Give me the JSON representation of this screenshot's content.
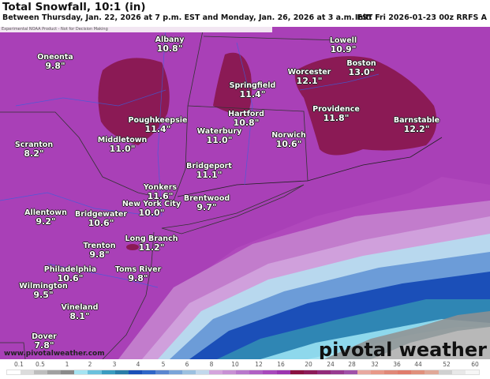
{
  "header": {
    "title": "Total Snowfall, 10:1 (in)",
    "subtitle": "Between Thursday, Jan. 22, 2026 at 7 p.m. EST and Monday, Jan. 26, 2026 at 3 a.m. EST",
    "init": "Init: Fri 2026-01-23 00z RRFS A",
    "disclaimer": "Experimental NOAA Product - Not for Decision Making"
  },
  "map": {
    "cities": [
      {
        "name": "Albany",
        "value": "10.8\""
      },
      {
        "name": "Oneonta",
        "value": "9.8\""
      },
      {
        "name": "Lowell",
        "value": "10.9\""
      },
      {
        "name": "Boston",
        "value": "13.0\""
      },
      {
        "name": "Worcester",
        "value": "12.1\""
      },
      {
        "name": "Springfield",
        "value": "11.4\""
      },
      {
        "name": "Poughkeepsie",
        "value": "11.4\""
      },
      {
        "name": "Hartford",
        "value": "10.8\""
      },
      {
        "name": "Providence",
        "value": "11.8\""
      },
      {
        "name": "Barnstable",
        "value": "12.2\""
      },
      {
        "name": "Waterbury",
        "value": "11.0\""
      },
      {
        "name": "Norwich",
        "value": "10.6\""
      },
      {
        "name": "Middletown",
        "value": "11.0\""
      },
      {
        "name": "Scranton",
        "value": "8.2\""
      },
      {
        "name": "Bridgeport",
        "value": "11.1\""
      },
      {
        "name": "Yonkers",
        "value": "11.6\""
      },
      {
        "name": "Brentwood",
        "value": "9.7\""
      },
      {
        "name": "New York City",
        "value": "10.0\""
      },
      {
        "name": "Allentown",
        "value": "9.2\""
      },
      {
        "name": "Bridgewater",
        "value": "10.6\""
      },
      {
        "name": "Long Branch",
        "value": "11.2\""
      },
      {
        "name": "Trenton",
        "value": "9.8\""
      },
      {
        "name": "Philadelphia",
        "value": "10.6\""
      },
      {
        "name": "Toms River",
        "value": "9.8\""
      },
      {
        "name": "Wilmington",
        "value": "9.5\""
      },
      {
        "name": "Vineland",
        "value": "8.1\""
      },
      {
        "name": "Dover",
        "value": "7.8\""
      }
    ],
    "url": "www.pivotalweather.com",
    "logo": "pivotal weather"
  },
  "legend": {
    "ticks": [
      "0.1",
      "0.5",
      "1",
      "2",
      "3",
      "4",
      "5",
      "6",
      "8",
      "10",
      "12",
      "16",
      "20",
      "24",
      "28",
      "32",
      "36",
      "44",
      "52",
      "60"
    ],
    "colors": [
      "#ffffff",
      "#dcdcdc",
      "#bdbdbd",
      "#a0a0a0",
      "#8a8a8a",
      "#a6e4f2",
      "#6cc0dc",
      "#3a9cc0",
      "#2a7ca8",
      "#1b4fb8",
      "#2f66c8",
      "#5a86d0",
      "#7aa4d8",
      "#9cc0e0",
      "#c2d8ec",
      "#d4a4dc",
      "#c890d4",
      "#b878cc",
      "#b060c4",
      "#a848bc",
      "#9c34b0",
      "#8a1040",
      "#8c1a58",
      "#922a7a",
      "#983a90",
      "#a050a8",
      "#e8a8a0",
      "#e89888",
      "#e08878",
      "#e07c6c",
      "#e0907c",
      "#e0a898",
      "#d0d0d0",
      "#e8e8e8",
      "#f6f6f6"
    ]
  }
}
